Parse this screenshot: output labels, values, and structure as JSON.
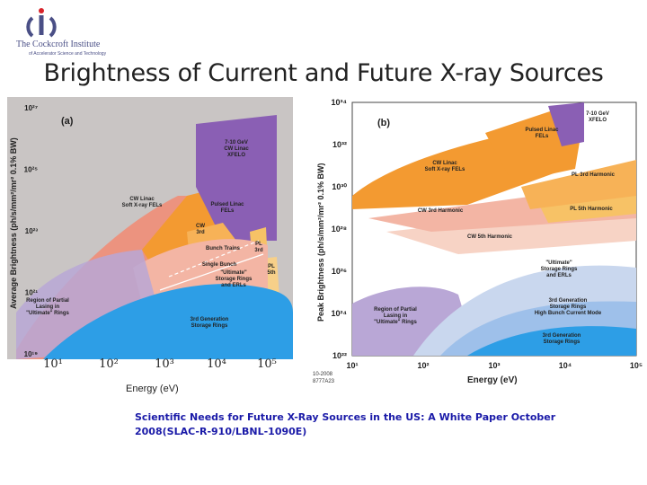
{
  "logo": {
    "name": "The Cockcroft Institute",
    "sub": "of Accelerator Science and Technology"
  },
  "slide": {
    "title": "Brightness of Current and Future X-ray Sources"
  },
  "citation": "Scientific Needs for Future X-Ray Sources in the US: A White Paper   October 2008(SLAC-R-910/LBNL-1090E)",
  "colors": {
    "red_region": "#ef8d78",
    "orange_region": "#f39a31",
    "purple_region": "#8a5fb4",
    "blue_region": "#2d9ee6",
    "lavender_region": "#b9a7d6"
  },
  "chart_data": [
    {
      "type": "area",
      "panel": "(a)",
      "ylabel": "Average Brightness  (ph/s/mm²/mr² 0.1% BW)",
      "yticks": [
        "10²⁷",
        "10²⁵",
        "10²³",
        "10²¹",
        "10¹⁹"
      ],
      "ylim": [
        19,
        27
      ],
      "xticks": [
        "10¹",
        "10²",
        "10³",
        "10⁴",
        "10⁵"
      ],
      "xlim": [
        0.5,
        5.3
      ],
      "xlabel": "Energy (eV)",
      "log_scale": true,
      "regions": [
        {
          "name": "CW Linac\nSoft X-ray FELs",
          "color": "#ef8d78"
        },
        {
          "name": "Pulsed Linac\nFELs",
          "color": "#f39a31"
        },
        {
          "name": "7-10 GeV\nCW Linac\nXFELO",
          "color": "#8a5fb4"
        },
        {
          "name": "CW\n3rd",
          "color": "#f7b257"
        },
        {
          "name": "PL\n3rd",
          "color": "#f7c266"
        },
        {
          "name": "PL\n5th",
          "color": "#f7d089"
        },
        {
          "name": "Bunch Trains",
          "color": "#ffffff"
        },
        {
          "name": "Single Bunch",
          "color": "#ffffff"
        },
        {
          "name": "\"Ultimate\"\nStorage Rings\nand ERLs",
          "color": "#f3b5a4"
        },
        {
          "name": "Region of Partial\nLasing in\n\"Ultimate\" Rings",
          "color": "#b9a7d6"
        },
        {
          "name": "3rd Generation\nStorage Rings",
          "color": "#2d9ee6"
        }
      ]
    },
    {
      "type": "area",
      "panel": "(b)",
      "ylabel": "Peak Brightness  (ph/s/mm²/mr² 0.1% BW)",
      "yticks": [
        "10³⁴",
        "10³²",
        "10³⁰",
        "10²⁸",
        "10²⁶",
        "10²⁴",
        "10²²"
      ],
      "ylim": [
        22,
        34
      ],
      "xticks": [
        "10¹",
        "10²",
        "10³",
        "10⁴",
        "10⁵"
      ],
      "xlim": [
        0.5,
        5
      ],
      "xlabel": "Energy  (eV)",
      "log_scale": true,
      "regions": [
        {
          "name": "7-10 GeV\nXFELO",
          "color": "#8a5fb4"
        },
        {
          "name": "Pulsed Linac\nFELs",
          "color": "#f39a31"
        },
        {
          "name": "CW Linac\nSoft X-ray FELs",
          "color": "#f39a31"
        },
        {
          "name": "PL 3rd Harmonic",
          "color": "#f7b257"
        },
        {
          "name": "PL 5th Harmonic",
          "color": "#f7c266"
        },
        {
          "name": "CW 3rd Harmonic",
          "color": "#f3b5a4"
        },
        {
          "name": "CW 5th Harmonic",
          "color": "#f7d3c5"
        },
        {
          "name": "\"Ultimate\"\nStorage Rings\nand ERLs",
          "color": "#c9d7ee"
        },
        {
          "name": "3rd Generation\nStorage Rings\nHigh Bunch Current Mode",
          "color": "#9ec0ea"
        },
        {
          "name": "Region of Partial\nLasing in\n\"Ultimate\" Rings",
          "color": "#b9a7d6"
        },
        {
          "name": "3rd Generation\nStorage Rings",
          "color": "#2d9ee6"
        }
      ],
      "figure_code": "10-2008\n8777A23"
    }
  ]
}
